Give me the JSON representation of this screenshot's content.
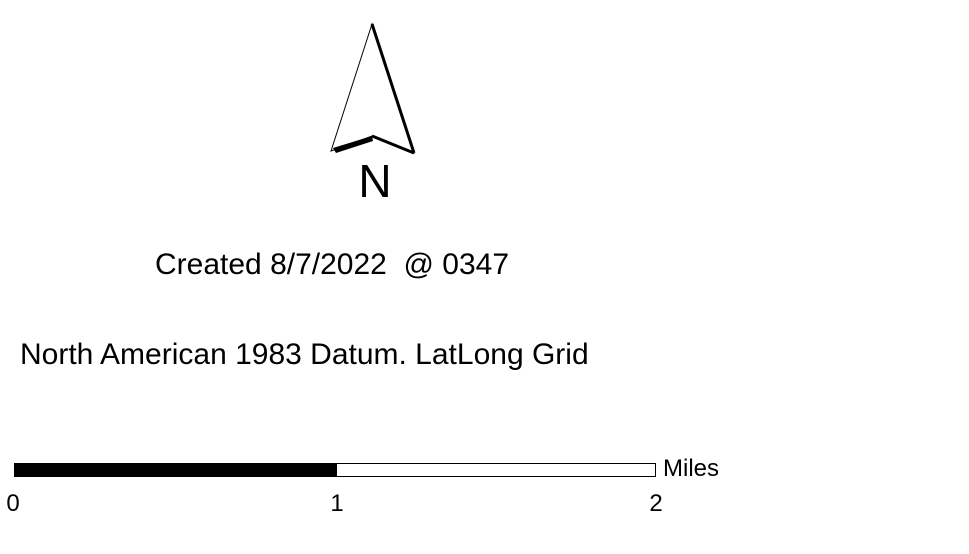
{
  "north_arrow": {
    "icon": "north-arrow-icon",
    "label": "N"
  },
  "created": {
    "text": "Created 8/7/2022  @ 0347"
  },
  "datum": {
    "text": "North American 1983 Datum. LatLong Grid"
  },
  "scale_bar": {
    "units": "Miles",
    "ticks": [
      "0",
      "1",
      "2"
    ],
    "colors": {
      "filled": "#000000",
      "empty": "#ffffff"
    }
  }
}
